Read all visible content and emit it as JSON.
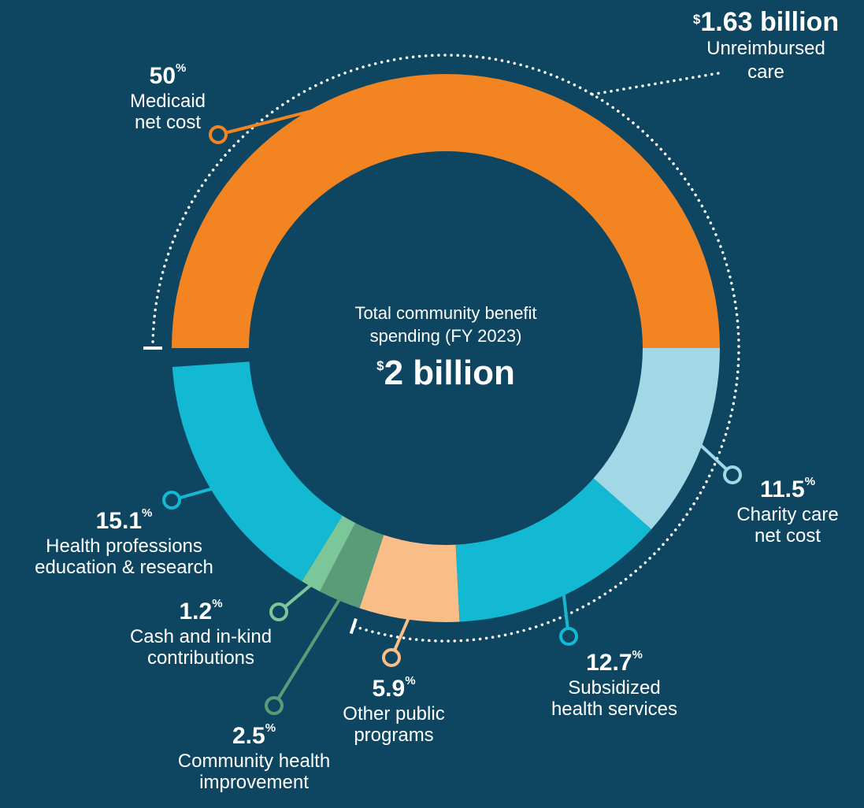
{
  "chart_data": {
    "type": "donut",
    "center": {
      "line1": "Total community benefit",
      "line2": "spending (FY 2023)",
      "currency": "$",
      "value": "2 billion"
    },
    "segments": [
      {
        "id": "medicaid",
        "percent": 50,
        "pct_label": "50",
        "name": "Medicaid\nnet cost",
        "color": "#f38422"
      },
      {
        "id": "charity",
        "percent": 11.5,
        "pct_label": "11.5",
        "name": "Charity care\nnet cost",
        "color": "#a2d7e6"
      },
      {
        "id": "subsidized",
        "percent": 12.7,
        "pct_label": "12.7",
        "name": "Subsidized\nhealth services",
        "color": "#13b8d2"
      },
      {
        "id": "other-public",
        "percent": 5.9,
        "pct_label": "5.9",
        "name": "Other public\nprograms",
        "color": "#f9bd87"
      },
      {
        "id": "community-health",
        "percent": 2.5,
        "pct_label": "2.5",
        "name": "Community health\nimprovement",
        "color": "#5a9b78"
      },
      {
        "id": "cash-inkind",
        "percent": 1.2,
        "pct_label": "1.2",
        "name": "Cash and in-kind\ncontributions",
        "color": "#7cc79a"
      },
      {
        "id": "health-prof",
        "percent": 15.1,
        "pct_label": "15.1",
        "name": "Health professions\neducation & research",
        "color": "#13b8d2"
      }
    ],
    "pct_suffix": "%",
    "bracket": {
      "currency": "$",
      "amount": "1.63 billion",
      "label": "Unreimbursed\ncare",
      "covers": [
        "medicaid",
        "charity",
        "subsidized",
        "other-public"
      ]
    }
  },
  "colors": {
    "background": "#0e4560",
    "text": "#ffffff",
    "dots": "#ffffff"
  }
}
